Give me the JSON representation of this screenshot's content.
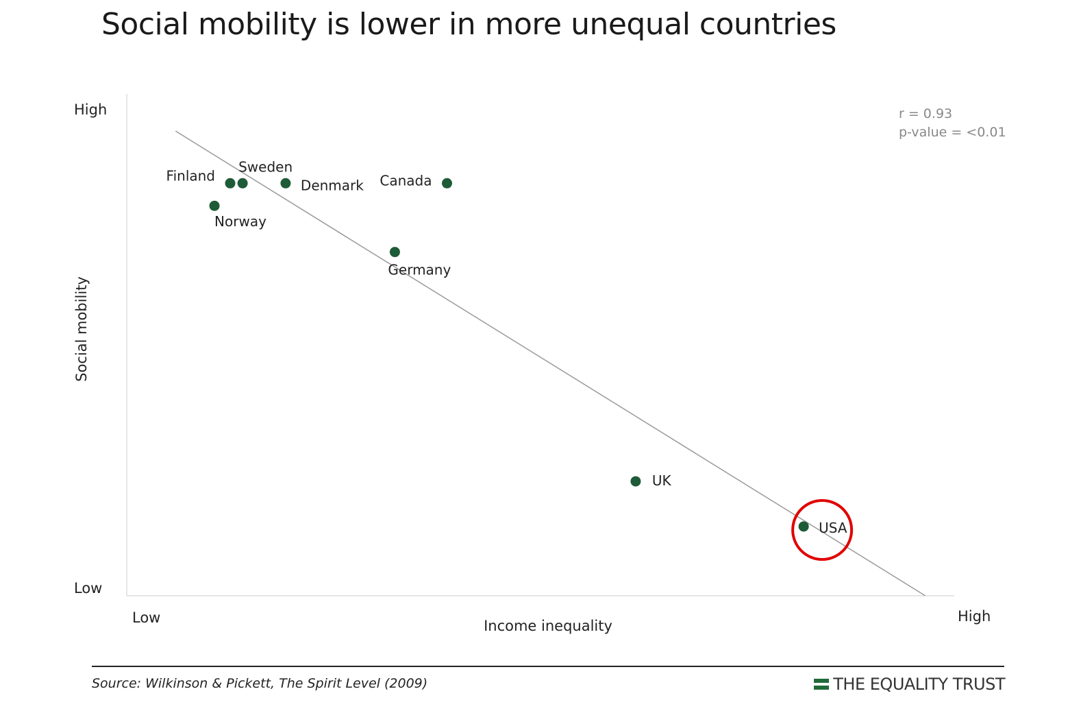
{
  "title": "Social mobility is lower in more unequal countries",
  "source_prefix": "Source: Wilkinson & Pickett, ",
  "source_book": "The Spirit Level",
  "source_year": " (2009)",
  "brand": "THE EQUALITY TRUST",
  "colors": {
    "point": "#1e5b37",
    "trend": "#9a9a9a",
    "axis": "#dddddd",
    "highlight": "#e00000",
    "brand": "#1f6b3a"
  },
  "chart_data": {
    "type": "scatter",
    "title": "Social mobility is lower in more unequal countries",
    "xlabel": "Income inequality",
    "ylabel": "Social mobility",
    "x_tick_low": "Low",
    "x_tick_high": "High",
    "y_tick_low": "Low",
    "y_tick_high": "High",
    "xlim": [
      0,
      1
    ],
    "ylim": [
      0,
      1
    ],
    "stats": {
      "r": "r = 0.93",
      "p": "p-value = <0.01"
    },
    "points": [
      {
        "label": "Finland",
        "x": 0.125,
        "y": 0.822
      },
      {
        "label": "Sweden",
        "x": 0.14,
        "y": 0.822
      },
      {
        "label": "Norway",
        "x": 0.106,
        "y": 0.777
      },
      {
        "label": "Denmark",
        "x": 0.192,
        "y": 0.822
      },
      {
        "label": "Canada",
        "x": 0.387,
        "y": 0.822
      },
      {
        "label": "Germany",
        "x": 0.324,
        "y": 0.685
      },
      {
        "label": "UK",
        "x": 0.615,
        "y": 0.228
      },
      {
        "label": "USA",
        "x": 0.818,
        "y": 0.138
      }
    ],
    "trend_line": {
      "x1": 0.059,
      "y1": 0.926,
      "x2": 0.965,
      "y2": 0.0
    },
    "highlight": "USA"
  }
}
